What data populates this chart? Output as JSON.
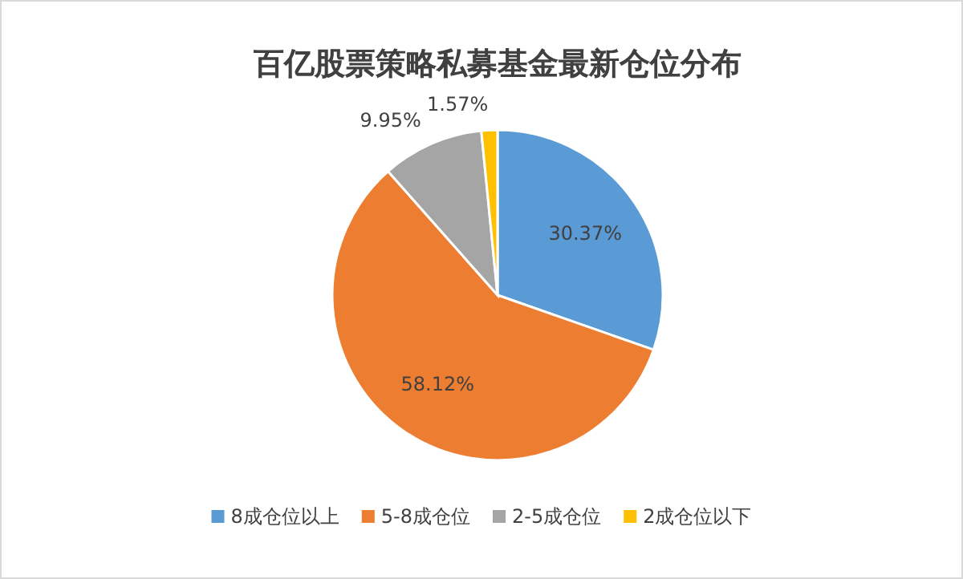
{
  "chart_data": {
    "type": "pie",
    "title": "百亿股票策略私募基金最新仓位分布",
    "categories": [
      "8成仓位以上",
      "5-8成仓位",
      "2-5成仓位",
      "2成仓位以下"
    ],
    "values": [
      30.37,
      58.12,
      9.95,
      1.57
    ],
    "colors": [
      "#5b9bd5",
      "#ed7d31",
      "#a5a5a5",
      "#ffc000"
    ],
    "value_labels": [
      "30.37%",
      "58.12%",
      "9.95%",
      "1.57%"
    ],
    "legend": "bottom"
  }
}
